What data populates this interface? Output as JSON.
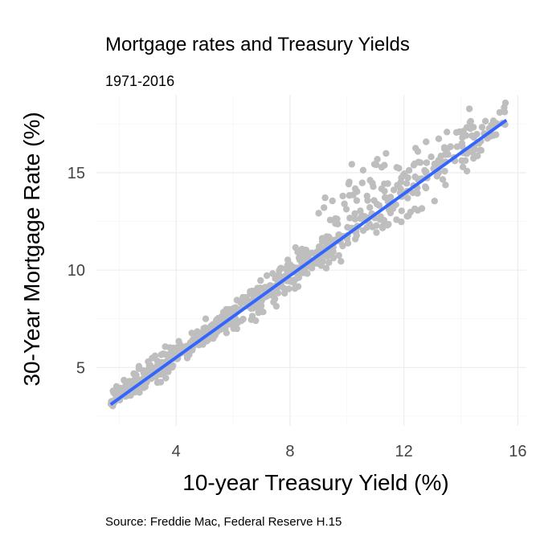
{
  "chart_data": {
    "type": "scatter",
    "title": "Mortgage rates and Treasury Yields",
    "subtitle": "1971-2016",
    "caption": "Source: Freddie Mac, Federal Reserve H.15",
    "xlabel": "10-year Treasury Yield (%)",
    "ylabel": "30-Year Mortgage Rate (%)",
    "xlim": [
      1.2,
      16.3
    ],
    "ylim": [
      2.0,
      19.0
    ],
    "x_ticks": [
      4,
      8,
      12,
      16
    ],
    "y_ticks": [
      5,
      10,
      15
    ],
    "grid": true,
    "legend": "none",
    "point_color": "#BEBEBE",
    "line_color": "#3366FF",
    "fit_line": {
      "x": [
        1.7,
        15.6
      ],
      "y": [
        3.1,
        17.7
      ]
    },
    "clusters": [
      {
        "x_from": 1.7,
        "x_to": 2.6,
        "slope": 1.05,
        "intercept": 1.5,
        "spread": 0.3,
        "count": 50
      },
      {
        "x_from": 2.5,
        "x_to": 4.0,
        "slope": 1.05,
        "intercept": 1.5,
        "spread": 0.35,
        "count": 110
      },
      {
        "x_from": 4.0,
        "x_to": 6.0,
        "slope": 1.05,
        "intercept": 1.45,
        "spread": 0.3,
        "count": 140
      },
      {
        "x_from": 6.0,
        "x_to": 9.5,
        "slope": 1.05,
        "intercept": 1.4,
        "spread": 0.45,
        "count": 220
      },
      {
        "x_from": 9.5,
        "x_to": 11.0,
        "slope": 1.05,
        "intercept": 1.4,
        "spread": 0.55,
        "count": 50
      },
      {
        "x_from": 11.0,
        "x_to": 14.5,
        "slope": 1.05,
        "intercept": 1.6,
        "spread": 0.8,
        "count": 120
      },
      {
        "x_from": 14.0,
        "x_to": 15.6,
        "slope": 0.9,
        "intercept": 3.6,
        "spread": 0.55,
        "count": 40
      },
      {
        "x_from": 9.0,
        "x_to": 11.5,
        "slope": 1.05,
        "intercept": 3.6,
        "spread": 0.6,
        "count": 30
      }
    ]
  }
}
